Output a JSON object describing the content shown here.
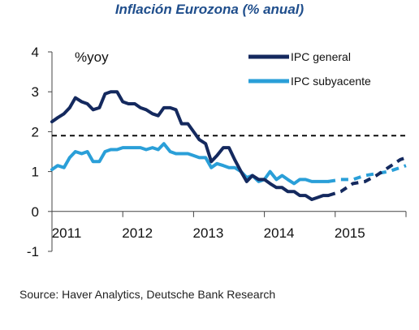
{
  "chart_data": {
    "type": "line",
    "title": "Inflación Eurozona (% anual)",
    "unit_label": "%yoy",
    "source": "Source: Haver Analytics,  Deutsche Bank Research",
    "xlim": [
      2011,
      2016
    ],
    "ylim": [
      -1,
      4
    ],
    "x_ticks": [
      "2011",
      "2012",
      "2013",
      "2014",
      "2015"
    ],
    "y_ticks": [
      "4",
      "3",
      "2",
      "1",
      "0",
      "-1"
    ],
    "reference_line": {
      "y": 1.9,
      "style": "dashed",
      "color": "#000000"
    },
    "legend_position": "top-right",
    "series": [
      {
        "name": "IPC general",
        "color": "#14295e",
        "actual": [
          [
            2011.0,
            2.25
          ],
          [
            2011.08,
            2.35
          ],
          [
            2011.17,
            2.45
          ],
          [
            2011.25,
            2.6
          ],
          [
            2011.33,
            2.85
          ],
          [
            2011.42,
            2.75
          ],
          [
            2011.5,
            2.7
          ],
          [
            2011.58,
            2.55
          ],
          [
            2011.67,
            2.6
          ],
          [
            2011.75,
            2.95
          ],
          [
            2011.83,
            3.0
          ],
          [
            2011.92,
            3.0
          ],
          [
            2012.0,
            2.75
          ],
          [
            2012.08,
            2.7
          ],
          [
            2012.17,
            2.7
          ],
          [
            2012.25,
            2.6
          ],
          [
            2012.33,
            2.55
          ],
          [
            2012.42,
            2.45
          ],
          [
            2012.5,
            2.4
          ],
          [
            2012.58,
            2.6
          ],
          [
            2012.67,
            2.6
          ],
          [
            2012.75,
            2.55
          ],
          [
            2012.83,
            2.2
          ],
          [
            2012.92,
            2.2
          ],
          [
            2013.0,
            2.0
          ],
          [
            2013.08,
            1.8
          ],
          [
            2013.17,
            1.7
          ],
          [
            2013.25,
            1.25
          ],
          [
            2013.33,
            1.4
          ],
          [
            2013.42,
            1.6
          ],
          [
            2013.5,
            1.6
          ],
          [
            2013.58,
            1.3
          ],
          [
            2013.67,
            1.0
          ],
          [
            2013.75,
            0.75
          ],
          [
            2013.83,
            0.9
          ],
          [
            2013.92,
            0.8
          ],
          [
            2014.0,
            0.8
          ],
          [
            2014.08,
            0.7
          ],
          [
            2014.17,
            0.6
          ],
          [
            2014.25,
            0.6
          ],
          [
            2014.33,
            0.5
          ],
          [
            2014.42,
            0.5
          ],
          [
            2014.5,
            0.4
          ],
          [
            2014.58,
            0.4
          ],
          [
            2014.67,
            0.3
          ],
          [
            2014.75,
            0.35
          ],
          [
            2014.83,
            0.4
          ],
          [
            2014.9,
            0.4
          ]
        ],
        "forecast": [
          [
            2014.9,
            0.4
          ],
          [
            2015.08,
            0.5
          ],
          [
            2015.25,
            0.7
          ],
          [
            2015.42,
            0.75
          ],
          [
            2015.58,
            0.9
          ],
          [
            2015.75,
            1.1
          ],
          [
            2015.92,
            1.3
          ],
          [
            2016.0,
            1.35
          ]
        ]
      },
      {
        "name": "IPC subyacente",
        "color": "#2a9fd8",
        "actual": [
          [
            2011.0,
            1.05
          ],
          [
            2011.08,
            1.15
          ],
          [
            2011.17,
            1.1
          ],
          [
            2011.25,
            1.35
          ],
          [
            2011.33,
            1.5
          ],
          [
            2011.42,
            1.45
          ],
          [
            2011.5,
            1.5
          ],
          [
            2011.58,
            1.25
          ],
          [
            2011.67,
            1.25
          ],
          [
            2011.75,
            1.5
          ],
          [
            2011.83,
            1.55
          ],
          [
            2011.92,
            1.55
          ],
          [
            2012.0,
            1.6
          ],
          [
            2012.08,
            1.6
          ],
          [
            2012.17,
            1.6
          ],
          [
            2012.25,
            1.6
          ],
          [
            2012.33,
            1.55
          ],
          [
            2012.42,
            1.6
          ],
          [
            2012.5,
            1.55
          ],
          [
            2012.58,
            1.7
          ],
          [
            2012.67,
            1.5
          ],
          [
            2012.75,
            1.45
          ],
          [
            2012.83,
            1.45
          ],
          [
            2012.92,
            1.45
          ],
          [
            2013.0,
            1.4
          ],
          [
            2013.08,
            1.35
          ],
          [
            2013.17,
            1.35
          ],
          [
            2013.25,
            1.1
          ],
          [
            2013.33,
            1.2
          ],
          [
            2013.42,
            1.15
          ],
          [
            2013.5,
            1.1
          ],
          [
            2013.58,
            1.1
          ],
          [
            2013.67,
            1.0
          ],
          [
            2013.75,
            0.85
          ],
          [
            2013.83,
            0.9
          ],
          [
            2013.92,
            0.75
          ],
          [
            2014.0,
            0.8
          ],
          [
            2014.08,
            1.0
          ],
          [
            2014.17,
            0.8
          ],
          [
            2014.25,
            0.9
          ],
          [
            2014.33,
            0.8
          ],
          [
            2014.42,
            0.7
          ],
          [
            2014.5,
            0.8
          ],
          [
            2014.58,
            0.8
          ],
          [
            2014.67,
            0.75
          ],
          [
            2014.75,
            0.75
          ],
          [
            2014.83,
            0.75
          ],
          [
            2014.9,
            0.75
          ]
        ],
        "forecast": [
          [
            2014.9,
            0.75
          ],
          [
            2015.08,
            0.8
          ],
          [
            2015.25,
            0.8
          ],
          [
            2015.42,
            0.9
          ],
          [
            2015.58,
            0.95
          ],
          [
            2015.75,
            1.0
          ],
          [
            2015.92,
            1.1
          ],
          [
            2016.0,
            1.15
          ]
        ]
      }
    ]
  }
}
